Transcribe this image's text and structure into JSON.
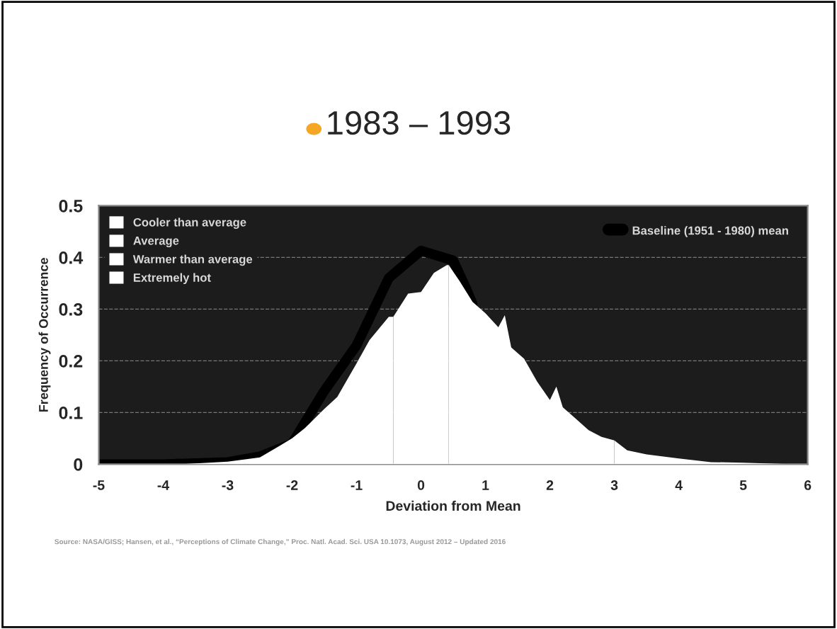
{
  "chart_data": {
    "type": "area",
    "title": "1983 – 1993",
    "xlabel": "Deviation from Mean",
    "ylabel": "Frequency of Occurrence",
    "annotations": [
      "Source: NASA/GISS; Hansen, et al., “Perceptions of Climate Change,” Proc. Natl. Acad. Sci. USA 10.1073, August 2012 – Updated 2016"
    ],
    "series": [
      {
        "name": "Cooler than average",
        "color": "#ffffff",
        "x": [
          -5,
          -3.7,
          -3,
          -2.5,
          -2.2,
          -2,
          -1.8,
          -1.5,
          -1.3,
          -1,
          -0.8,
          -0.5,
          -0.43
        ],
        "values": [
          0,
          0,
          0.005,
          0.013,
          0.035,
          0.05,
          0.07,
          0.107,
          0.13,
          0.195,
          0.24,
          0.285,
          0.285
        ]
      },
      {
        "name": "Average",
        "color": "#ffffff",
        "x": [
          -0.43,
          -0.2,
          0,
          0.2,
          0.4,
          0.43
        ],
        "values": [
          0.285,
          0.33,
          0.333,
          0.37,
          0.385,
          0.385
        ]
      },
      {
        "name": "Warmer than average",
        "color": "#ffffff",
        "x": [
          0.43,
          0.6,
          0.8,
          1.0,
          1.2,
          1.3,
          1.4,
          1.6,
          1.8,
          2.0,
          2.1,
          2.2,
          2.4,
          2.6,
          2.8,
          3.0
        ],
        "values": [
          0.385,
          0.354,
          0.314,
          0.292,
          0.265,
          0.288,
          0.226,
          0.204,
          0.16,
          0.124,
          0.15,
          0.11,
          0.088,
          0.066,
          0.053,
          0.046
        ]
      },
      {
        "name": "Extremely hot",
        "color": "#ffffff",
        "x": [
          3.0,
          3.2,
          3.5,
          4,
          4.5,
          5,
          5.7,
          6
        ],
        "values": [
          0.046,
          0.027,
          0.019,
          0.011,
          0.004,
          0.003,
          0,
          0
        ]
      },
      {
        "name": "Baseline (1951 - 1980) mean",
        "type": "line",
        "color": "#000000",
        "x": [
          -5,
          -4,
          -3,
          -2.5,
          -2,
          -1.5,
          -1,
          -0.5,
          0,
          0.5,
          0.7,
          0.8
        ],
        "values": [
          0,
          0,
          0.004,
          0.015,
          0.04,
          0.142,
          0.23,
          0.36,
          0.413,
          0.394,
          0.34,
          0.31
        ]
      }
    ],
    "xlim": [
      -5,
      6
    ],
    "xticks": [
      -5,
      -4,
      -3,
      -2,
      -1,
      0,
      1,
      2,
      3,
      4,
      5,
      6
    ],
    "ylim": [
      0,
      0.5
    ],
    "yticks": [
      0,
      0.1,
      0.2,
      0.3,
      0.4,
      0.5
    ],
    "grid": "y",
    "legend": "top",
    "marker": "none",
    "line_style": "solid"
  }
}
